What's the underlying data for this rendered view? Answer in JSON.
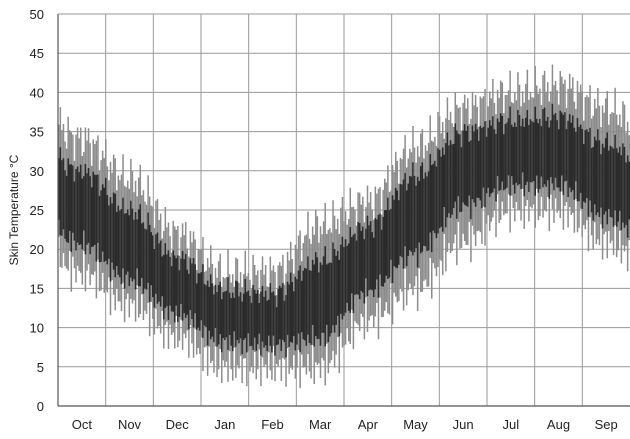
{
  "chart_data": {
    "type": "line",
    "title": "",
    "xlabel": "",
    "ylabel": "Skin Temperature °C",
    "ylim": [
      0,
      50
    ],
    "y_ticks": [
      "0",
      "5",
      "10",
      "15",
      "20",
      "25",
      "30",
      "35",
      "40",
      "45",
      "50"
    ],
    "categories": [
      "Oct",
      "Nov",
      "Dec",
      "Jan",
      "Feb",
      "Mar",
      "Apr",
      "May",
      "Jun",
      "Jul",
      "Aug",
      "Sep"
    ],
    "grid": true,
    "legend": "none",
    "colors": {
      "band": "#8c8c8c",
      "core": "#2b2b2b",
      "grid": "#9a9a9a",
      "axis": "#555555"
    },
    "series": [
      {
        "values": {
          "max": [
            34,
            29,
            22,
            17,
            17,
            23,
            26,
            33,
            38,
            40,
            41,
            38
          ],
          "min": [
            17,
            13,
            9,
            5,
            5,
            5,
            11,
            15,
            21,
            25,
            25,
            21
          ],
          "mean": [
            25,
            20,
            15,
            12,
            11,
            13,
            19,
            25,
            31,
            32,
            32,
            28
          ]
        }
      }
    ]
  }
}
